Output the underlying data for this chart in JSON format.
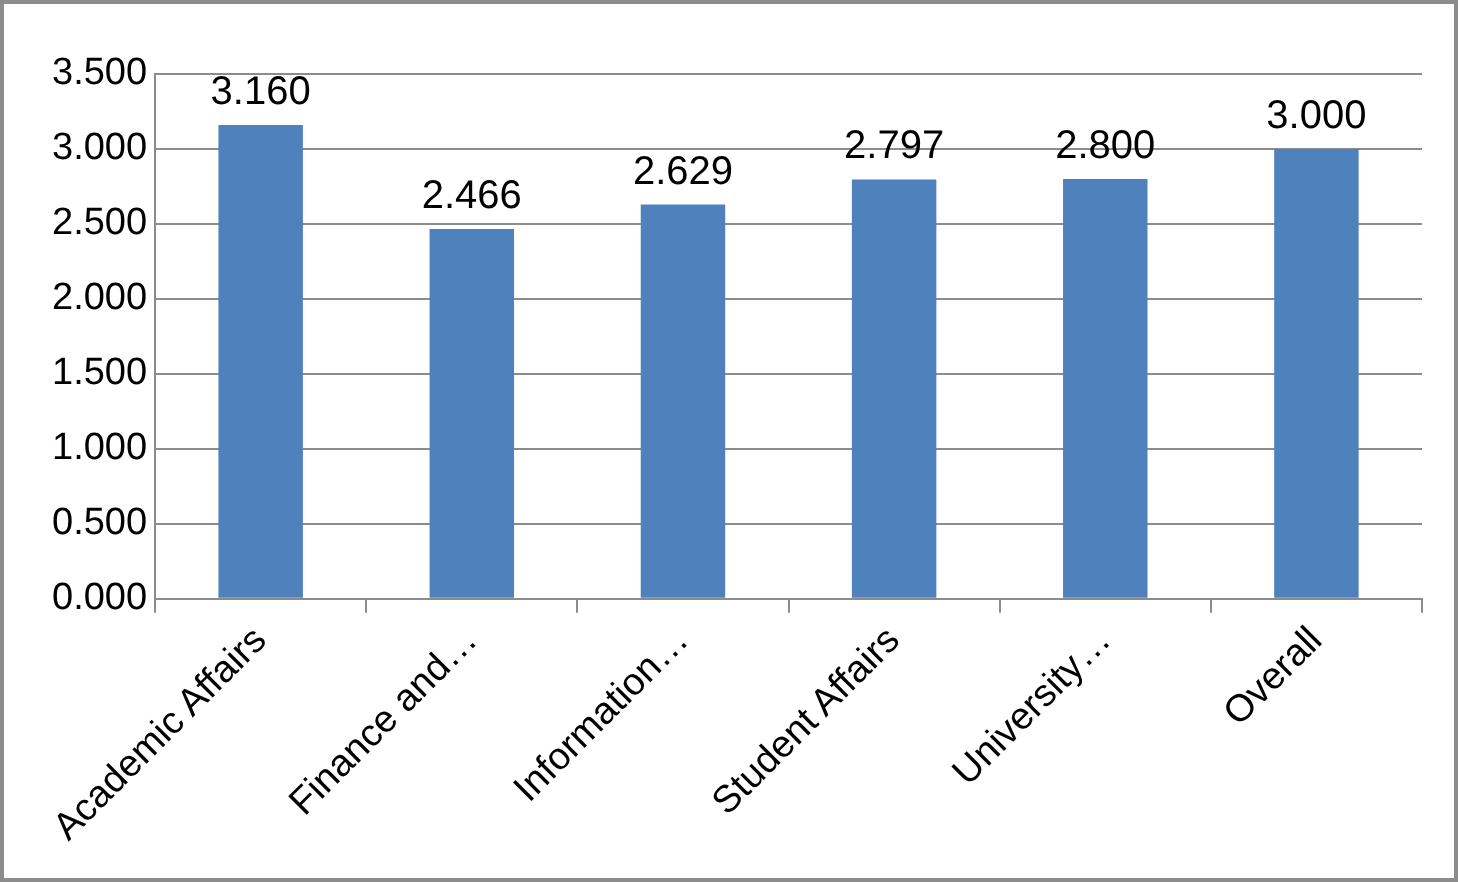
{
  "chart_data": {
    "type": "bar",
    "categories": [
      "Academic Affairs",
      "Finance and…",
      "Information…",
      "Student Affairs",
      "University…",
      "Overall"
    ],
    "values": [
      3.16,
      2.466,
      2.629,
      2.797,
      2.8,
      3.0
    ],
    "value_labels": [
      "3.160",
      "2.466",
      "2.629",
      "2.797",
      "2.800",
      "3.000"
    ],
    "color": "#4f81bd",
    "ylim": [
      0,
      3.5
    ],
    "yticks": [
      {
        "value": 0,
        "label": "0.000"
      },
      {
        "value": 0.5,
        "label": "0.500"
      },
      {
        "value": 1,
        "label": "1.000"
      },
      {
        "value": 1.5,
        "label": "1.500"
      },
      {
        "value": 2,
        "label": "2.000"
      },
      {
        "value": 2.5,
        "label": "2.500"
      },
      {
        "value": 3,
        "label": "3.000"
      },
      {
        "value": 3.5,
        "label": "3.500"
      }
    ],
    "grid": "y",
    "legend": false
  }
}
